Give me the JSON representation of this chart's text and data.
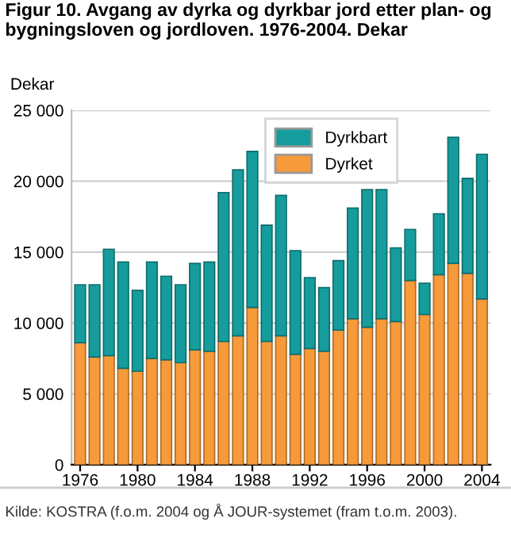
{
  "chart_data": {
    "type": "bar",
    "title": "Figur 10. Avgang av dyrka og dyrkbar jord etter plan- og bygningsloven og jordloven. 1976-2004. Dekar",
    "ylabel": "Dekar",
    "stacked": true,
    "x": [
      1976,
      1977,
      1978,
      1979,
      1980,
      1981,
      1982,
      1983,
      1984,
      1985,
      1986,
      1987,
      1988,
      1989,
      1990,
      1991,
      1992,
      1993,
      1994,
      1995,
      1996,
      1997,
      1998,
      1999,
      2000,
      2001,
      2002,
      2003,
      2004
    ],
    "series": [
      {
        "name": "Dyrket",
        "color": "#f79a3a",
        "values": [
          8600,
          7600,
          7700,
          6800,
          6600,
          7500,
          7400,
          7200,
          8100,
          8000,
          8700,
          9100,
          11100,
          8700,
          9100,
          7800,
          8200,
          8000,
          9500,
          10300,
          9700,
          10300,
          10100,
          13000,
          10600,
          13400,
          14200,
          13500,
          11700
        ]
      },
      {
        "name": "Dyrkbart",
        "color": "#169c9c",
        "values": [
          4100,
          5100,
          7500,
          7500,
          5700,
          6800,
          5900,
          5500,
          6100,
          6300,
          10500,
          11700,
          11000,
          8200,
          9900,
          7300,
          5000,
          4500,
          4900,
          7800,
          9700,
          9100,
          5200,
          3600,
          2200,
          4300,
          8900,
          6700,
          10200
        ]
      }
    ],
    "xlim": [
      1975.4,
      2004.6
    ],
    "xticks": [
      1976,
      1980,
      1984,
      1988,
      1992,
      1996,
      2000,
      2004
    ],
    "ylim": [
      0,
      25000
    ],
    "yticks": [
      0,
      {
        "value": 5000,
        "label": "5 000"
      },
      {
        "value": 10000,
        "label": "10 000"
      },
      {
        "value": 15000,
        "label": "15 000"
      },
      {
        "value": 20000,
        "label": "20 000"
      },
      {
        "value": 25000,
        "label": "25 000"
      }
    ],
    "grid": "y",
    "legend": "top",
    "annotations": [
      "Kilde: KOSTRA (f.o.m. 2004 og Å JOUR-systemet (fram t.o.m. 2003)."
    ]
  }
}
